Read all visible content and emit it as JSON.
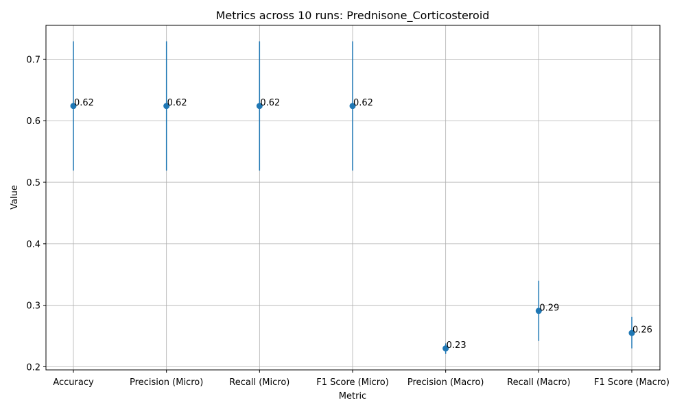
{
  "chart_data": {
    "type": "scatter",
    "title": "Metrics across 10 runs: Prednisone_Corticosteroid",
    "xlabel": "Metric",
    "ylabel": "Value",
    "categories": [
      "Accuracy",
      "Precision (Micro)",
      "Recall (Micro)",
      "F1 Score (Micro)",
      "Precision (Macro)",
      "Recall (Macro)",
      "F1 Score (Macro)"
    ],
    "values": [
      0.624,
      0.624,
      0.624,
      0.624,
      0.23,
      0.291,
      0.255
    ],
    "error_low": [
      0.519,
      0.519,
      0.519,
      0.519,
      0.221,
      0.242,
      0.23
    ],
    "error_high": [
      0.729,
      0.729,
      0.729,
      0.729,
      0.238,
      0.34,
      0.281
    ],
    "data_labels": [
      "0.62",
      "0.62",
      "0.62",
      "0.62",
      "0.23",
      "0.29",
      "0.26"
    ],
    "ylim": [
      0.195,
      0.755
    ],
    "yticks": [
      "0.2",
      "0.3",
      "0.4",
      "0.5",
      "0.6",
      "0.7"
    ],
    "ytick_values": [
      0.2,
      0.3,
      0.4,
      0.5,
      0.6,
      0.7
    ],
    "grid": true,
    "colors": {
      "series": "#1f77b4",
      "grid": "#b0b0b0",
      "axis": "#000000"
    }
  }
}
